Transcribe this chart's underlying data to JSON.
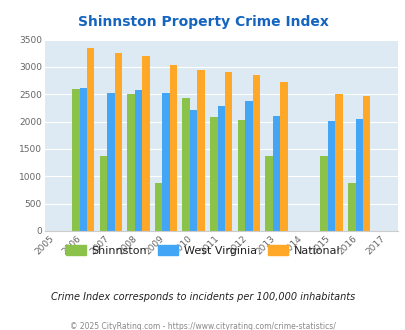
{
  "title": "Shinnston Property Crime Index",
  "all_years": [
    2005,
    2006,
    2007,
    2008,
    2009,
    2010,
    2011,
    2012,
    2013,
    2014,
    2015,
    2016,
    2017
  ],
  "data_years": [
    2006,
    2007,
    2008,
    2009,
    2010,
    2011,
    2012,
    2013,
    2015,
    2016
  ],
  "shinnston": [
    2600,
    1370,
    2500,
    870,
    2440,
    2090,
    2030,
    1370,
    1370,
    880
  ],
  "west_virginia": [
    2620,
    2530,
    2570,
    2530,
    2220,
    2280,
    2380,
    2100,
    2020,
    2050
  ],
  "national": [
    3340,
    3260,
    3200,
    3040,
    2950,
    2900,
    2850,
    2720,
    2500,
    2470
  ],
  "shinnston_color": "#8bc34a",
  "wv_color": "#42a5f5",
  "national_color": "#ffa726",
  "bg_color": "#ddeaf3",
  "title_color": "#1565c0",
  "yticks": [
    0,
    500,
    1000,
    1500,
    2000,
    2500,
    3000,
    3500
  ],
  "subtitle": "Crime Index corresponds to incidents per 100,000 inhabitants",
  "footer": "© 2025 CityRating.com - https://www.cityrating.com/crime-statistics/",
  "legend_labels": [
    "Shinnston",
    "West Virginia",
    "National"
  ]
}
